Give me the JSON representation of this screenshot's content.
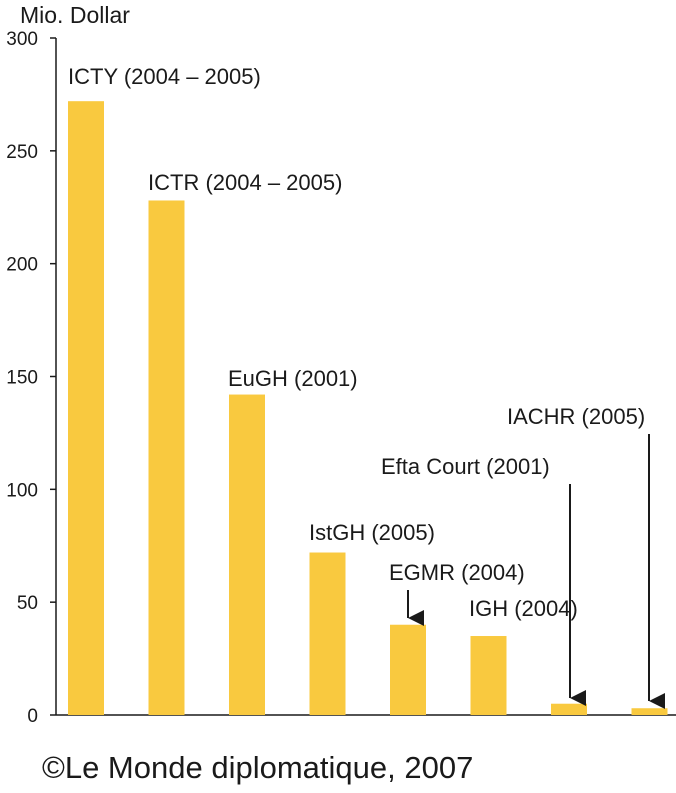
{
  "chart_data": {
    "type": "bar",
    "ylabel": "Mio. Dollar",
    "ylim": [
      0,
      300
    ],
    "yticks": [
      0,
      50,
      100,
      150,
      200,
      250,
      300
    ],
    "grid": false,
    "categories": [
      "ICTY (2004 – 2005)",
      "ICTR (2004 – 2005)",
      "EuGH (2001)",
      "IstGH (2005)",
      "EGMR (2004)",
      "IGH (2004)",
      "Efta Court (2001)",
      "IACHR (2005)"
    ],
    "values": [
      272,
      228,
      142,
      72,
      40,
      35,
      5,
      3
    ],
    "bar_color": "#f9c93f"
  },
  "credit": "©Le Monde diplomatique, 2007"
}
